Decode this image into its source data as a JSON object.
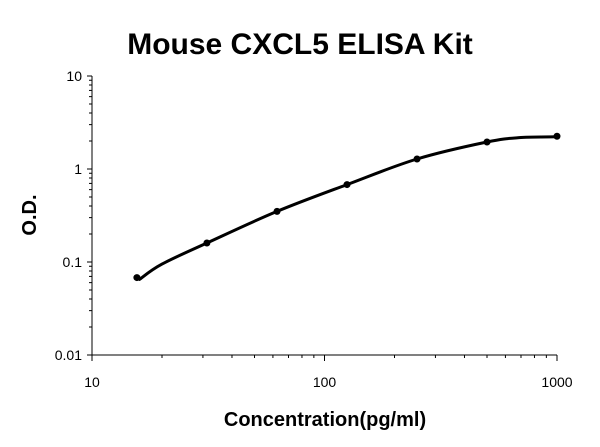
{
  "chart_data": {
    "type": "scatter",
    "title": "Mouse CXCL5 ELISA Kit",
    "xlabel": "Concentration(pg/ml)",
    "ylabel": "O.D.",
    "x_scale": "log",
    "y_scale": "log",
    "xlim": [
      10,
      1000
    ],
    "ylim": [
      0.01,
      10
    ],
    "x_ticks": [
      "10",
      "100",
      "1000"
    ],
    "y_ticks": [
      "0.01",
      "0.1",
      "1",
      "10"
    ],
    "grid": false,
    "legend": "none",
    "series": [
      {
        "x": [
          15.6,
          31.2,
          62.5,
          125,
          250,
          500,
          1000
        ],
        "y": [
          0.068,
          0.16,
          0.35,
          0.68,
          1.28,
          1.95,
          2.25
        ]
      }
    ],
    "fit_curve": {
      "x": [
        16,
        20,
        31.2,
        62.5,
        125,
        250,
        500,
        700,
        1000
      ],
      "y": [
        0.065,
        0.095,
        0.16,
        0.35,
        0.68,
        1.28,
        1.95,
        2.18,
        2.22
      ]
    }
  }
}
